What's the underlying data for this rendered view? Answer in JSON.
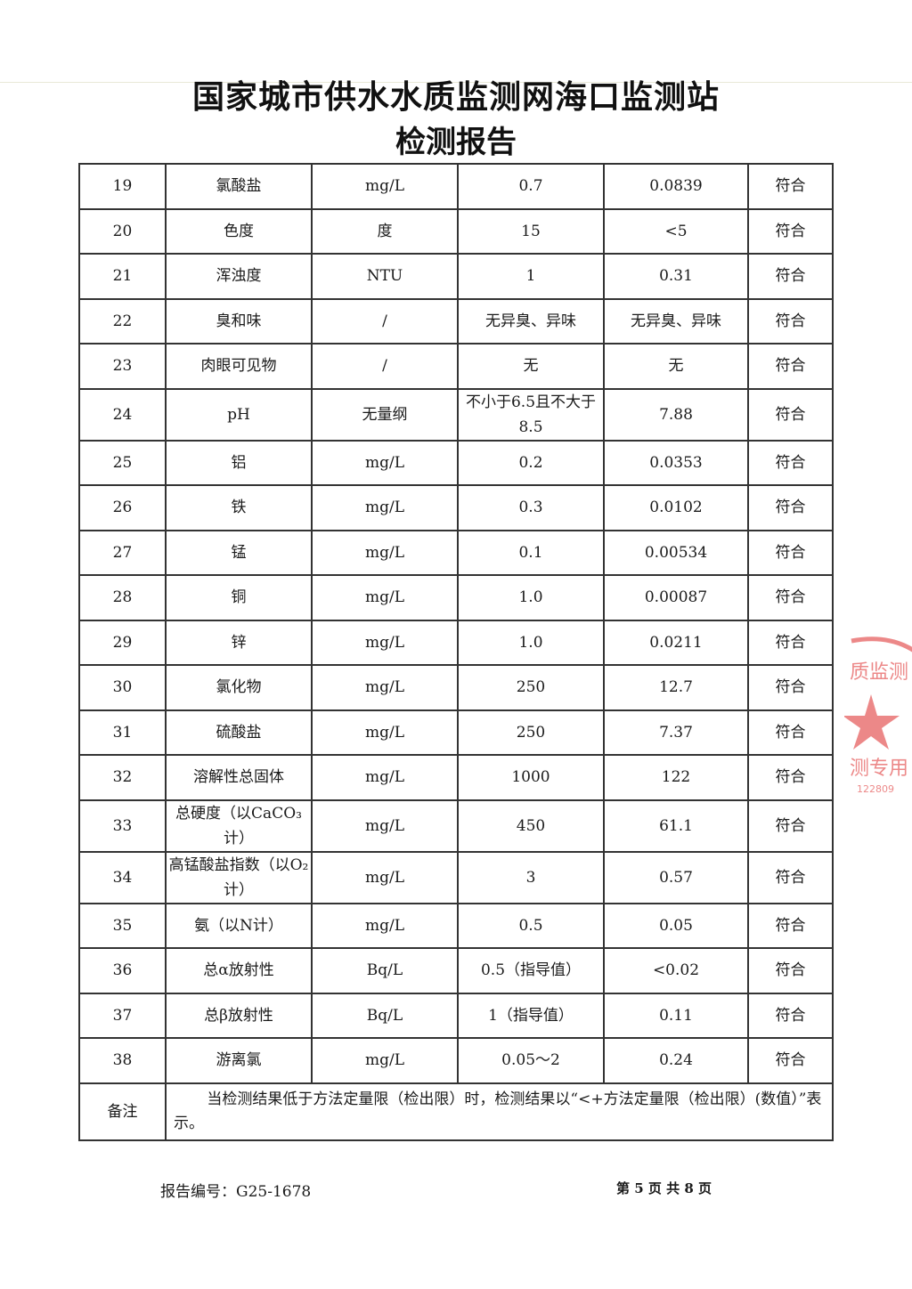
{
  "header": {
    "title": "国家城市供水水质监测网海口监测站",
    "subtitle": "检测报告"
  },
  "rows": [
    [
      "19",
      "氯酸盐",
      "mg/L",
      "0.7",
      "0.0839",
      "符合"
    ],
    [
      "20",
      "色度",
      "度",
      "15",
      "<5",
      "符合"
    ],
    [
      "21",
      "浑浊度",
      "NTU",
      "1",
      "0.31",
      "符合"
    ],
    [
      "22",
      "臭和味",
      "/",
      "无异臭、异味",
      "无异臭、异味",
      "符合"
    ],
    [
      "23",
      "肉眼可见物",
      "/",
      "无",
      "无",
      "符合"
    ],
    [
      "24",
      "pH",
      "无量纲",
      "不小于6.5且不大于8.5",
      "7.88",
      "符合"
    ],
    [
      "25",
      "铝",
      "mg/L",
      "0.2",
      "0.0353",
      "符合"
    ],
    [
      "26",
      "铁",
      "mg/L",
      "0.3",
      "0.0102",
      "符合"
    ],
    [
      "27",
      "锰",
      "mg/L",
      "0.1",
      "0.00534",
      "符合"
    ],
    [
      "28",
      "铜",
      "mg/L",
      "1.0",
      "0.00087",
      "符合"
    ],
    [
      "29",
      "锌",
      "mg/L",
      "1.0",
      "0.0211",
      "符合"
    ],
    [
      "30",
      "氯化物",
      "mg/L",
      "250",
      "12.7",
      "符合"
    ],
    [
      "31",
      "硫酸盐",
      "mg/L",
      "250",
      "7.37",
      "符合"
    ],
    [
      "32",
      "溶解性总固体",
      "mg/L",
      "1000",
      "122",
      "符合"
    ],
    [
      "33",
      "总硬度（以CaCO₃计）",
      "mg/L",
      "450",
      "61.1",
      "符合"
    ],
    [
      "34",
      "高锰酸盐指数（以O₂计）",
      "mg/L",
      "3",
      "0.57",
      "符合"
    ],
    [
      "35",
      "氨（以N计）",
      "mg/L",
      "0.5",
      "0.05",
      "符合"
    ],
    [
      "36",
      "总α放射性",
      "Bq/L",
      "0.5（指导值）",
      "<0.02",
      "符合"
    ],
    [
      "37",
      "总β放射性",
      "Bq/L",
      "1（指导值）",
      "0.11",
      "符合"
    ],
    [
      "38",
      "游离氯",
      "mg/L",
      "0.05～2",
      "0.24",
      "符合"
    ]
  ],
  "note": {
    "label": "备注",
    "text": "当检测结果低于方法定量限（检出限）时，检测结果以“<+方法定量限（检出限）(数值）”表示。"
  },
  "footer": {
    "report_no": "报告编号：G25-1678",
    "page": "第 5 页  共 8 页"
  },
  "stamp": {
    "text": "质监测…检测专用章",
    "color": "#e03a3a"
  }
}
